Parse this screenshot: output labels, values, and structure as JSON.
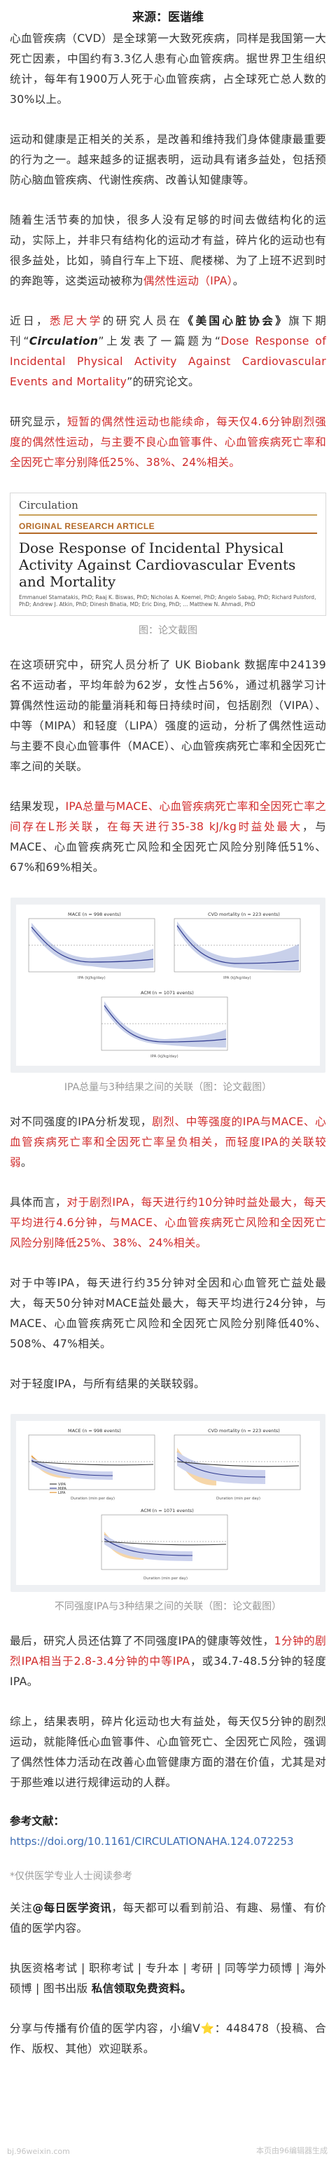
{
  "source": "来源：医谐维",
  "p1": {
    "a": "心血管疾病（CVD）是全球第一大致死疾病，同样是我国第一大死亡因素，中国约有3.3亿人患有心血管疾病。据世界卫生组织统计，每年有1900万人死于心血管疾病，占全球死亡总人数的30%以上。"
  },
  "p2": {
    "a": "运动和健康是正相关的关系，是改善和维持我们身体健康最重要的行为之一。越来越多的证据表明，运动具有诸多益处，包括预防心脑血管疾病、代谢性疾病、改善认知健康等。"
  },
  "p3": {
    "a": "随着生活节奏的加快，很多人没有足够的时间去做结构化的运动，实际上，并非只有结构化的运动才有益，碎片化的运动也有很多益处，比如，骑自行车上下班、爬楼梯、为了上班不迟到时的奔跑等，这类运动被称为",
    "red": "偶然性运动（IPA）",
    "b": "。"
  },
  "p4": {
    "a": "近日，",
    "red1": "悉尼大学",
    "b": "的研究人员在",
    "bold": "《美国心脏协会》",
    "c": "旗下期刊“",
    "it": "Circulation",
    "d": "”上发表了一篇题为“",
    "red2": "Dose Response of Incidental Physical Activity Against Cardiovascular Events and Mortality",
    "e": "”的研究论文。"
  },
  "p5": {
    "a": "研究显示，",
    "red": "短暂的偶然性运动也能续命，每天仅4.6分钟剧烈强度的偶然性运动，与主要不良心血管事件、心血管疾病死亡率和全因死亡率分别降低25%、38%、24%相关。"
  },
  "journal": {
    "name": "Circulation",
    "label": "ORIGINAL RESEARCH ARTICLE",
    "title": "Dose Response of Incidental Physical Activity Against Cardiovascular Events and Mortality",
    "authors": "Emmanuel Stamatakis, PhD; Raaj K. Biswas, PhD; Nicholas A. Koemel, PhD; Angelo Sabag, PhD; Richard Pulsford, PhD; Andrew J. Atkin, PhD; Dinesh Bhatia, MD; Eric Ding, PhD; ... Matthew N. Ahmadi, PhD"
  },
  "caption1": "图：论文截图",
  "p6": {
    "a": "在这项研究中，研究人员分析了 UK Biobank 数据库中24139名不运动者，平均年龄为62岁，女性占56%，通过机器学习计算偶然性运动的能量消耗和每日持续时间，包括剧烈（VIPA）、中等（MIPA）和轻度（LIPA）强度的运动，分析了偶然性运动与主要不良心血管事件（MACE）、心血管疾病死亡率和全因死亡率之间的关联。"
  },
  "p7": {
    "a": "结果发现，",
    "red1": "IPA总量与MACE、心血管疾病死亡率和全因死亡率之间存在L形关联",
    "b": "，",
    "red2": "在每天进行35-38 kJ/kg时益处最大",
    "c": "，与MACE、心血管疾病死亡风险和全因死亡风险分别降低51%、67%和69%相关。"
  },
  "chart1": {
    "panels": [
      {
        "title": "MACE (n = 998 events)"
      },
      {
        "title": "CVD mortality (n = 223 events)"
      },
      {
        "title": "ACM (n = 1071 events)"
      }
    ],
    "xlabel": "IPA (kJ/kg/day)",
    "ylabel": "Hazard Ratio"
  },
  "caption2": "IPA总量与3种结果之间的关联（图：论文截图）",
  "p8": {
    "a": "对不同强度的IPA分析发现，",
    "red": "剧烈、中等强度的IPA与MACE、心血管疾病死亡率和全因死亡率呈负相关，而轻度IPA的关联较弱",
    "b": "。"
  },
  "p9": {
    "a": "具体而言，",
    "red": "对于剧烈IPA，每天进行约10分钟时益处最大，每天平均进行4.6分钟，与MACE、心血管疾病死亡风险和全因死亡风险分别降低25%、38%、24%相关。"
  },
  "p10": {
    "a": "对于中等IPA，每天进行约35分钟对全因和心血管死亡益处最大，每天50分钟对MACE益处最大，每天平均进行24分钟，与MACE、心血管疾病死亡风险和全因死亡风险分别降低40%、508%、47%相关。"
  },
  "p11": {
    "a": "对于轻度IPA，与所有结果的关联较弱。"
  },
  "chart2": {
    "panels": [
      {
        "title": "MACE (n = 998 events)"
      },
      {
        "title": "CVD mortality (n = 223 events)"
      },
      {
        "title": "ACM (n = 1071 events)"
      }
    ],
    "legend": [
      "VIPA",
      "MIPA",
      "LIPA"
    ],
    "xlabel": "Duration (min per day)",
    "ylabel": "Hazard Ratio"
  },
  "caption3": "不同强度IPA与3种结果之间的关联（图：论文截图）",
  "p12": {
    "a": "最后，研究人员还估算了不同强度IPA的健康等效性，",
    "red": "1分钟的剧烈IPA相当于2.8-3.4分钟的中等IPA",
    "b": "，或34.7-48.5分钟的轻度IPA。"
  },
  "p13": {
    "a": "综上，结果表明，碎片化运动也大有益处，每天仅5分钟的剧烈运动，就能降低心血管事件、心血管死亡、全因死亡风险，强调了偶然性体力活动在改善心血管健康方面的潜在价值，尤其是对于那些难以进行规律运动的人群。"
  },
  "reference": {
    "title": "参考文献：",
    "link": "https://doi.org/10.1161/CIRCULATIONAHA.124.072253"
  },
  "footnote": "*仅供医学专业人士阅读参考",
  "follow": {
    "a": "关注",
    "bold": "@每日医学资讯",
    "b": "，每天都可以看到前沿、有趣、易懂、有价值的医学内容。"
  },
  "services": {
    "a": "执医资格考试 | 职称考试 | 专升本 | 考研 | 同等学力硕博 | 海外硕博 | 图书出版 ",
    "bold": "私信领取免费资料。"
  },
  "share": "分享与传播有价值的医学内容，小编V⭐：448478（投稿、合作、版权、其他）欢迎联系。",
  "watermark": {
    "left": "bj.96weixin.com",
    "right": "本页由96编辑器生成"
  },
  "colors": {
    "accent_red": "#d12b2b",
    "link_blue": "#3b6bb3",
    "fig_bg": "#eef0f3"
  }
}
